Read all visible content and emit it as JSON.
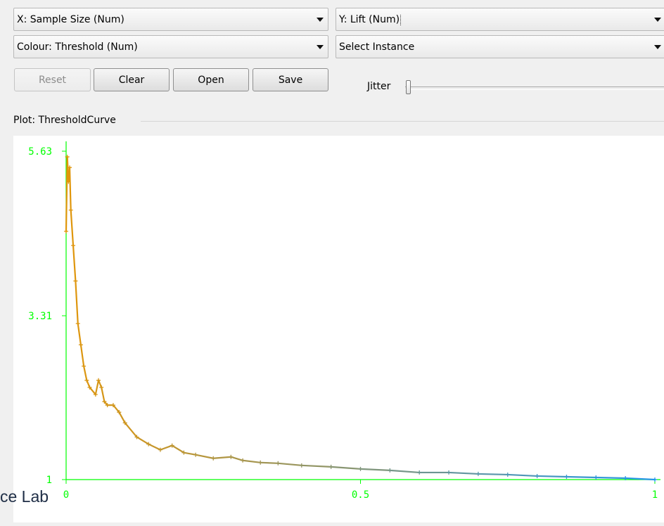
{
  "controls": {
    "x_axis_select": "X: Sample Size (Num)",
    "y_axis_select": "Y: Lift (Num)",
    "colour_select": "Colour: Threshold (Num)",
    "instance_select": "Select Instance",
    "reset_label": "Reset",
    "clear_label": "Clear",
    "open_label": "Open",
    "save_label": "Save",
    "jitter_label": "Jitter",
    "jitter_value": 0
  },
  "plot": {
    "title": "Plot: ThresholdCurve"
  },
  "watermark": "ce Lab",
  "colors": {
    "axis": "#00ff00",
    "series_start": "#e1960a",
    "series_end": "#1e96f0"
  },
  "chart_data": {
    "type": "line",
    "title": "",
    "xlabel": "",
    "ylabel": "",
    "xlim": [
      0,
      1
    ],
    "ylim": [
      1,
      5.63
    ],
    "x_ticks": [
      "0",
      "0.5",
      "1"
    ],
    "y_ticks": [
      "1",
      "3.31",
      "5.63"
    ],
    "grid": false,
    "series": [
      {
        "x": [
          0.0,
          0.002,
          0.004,
          0.006,
          0.008,
          0.012,
          0.016,
          0.02,
          0.025,
          0.03,
          0.035,
          0.04,
          0.05,
          0.055,
          0.06,
          0.065,
          0.07,
          0.08,
          0.09,
          0.1,
          0.12,
          0.14,
          0.16,
          0.18,
          0.2,
          0.22,
          0.25,
          0.28,
          0.3,
          0.33,
          0.36,
          0.4,
          0.45,
          0.5,
          0.55,
          0.6,
          0.65,
          0.7,
          0.75,
          0.8,
          0.85,
          0.9,
          0.95,
          1.0
        ],
        "y": [
          4.5,
          5.55,
          5.2,
          5.4,
          4.8,
          4.3,
          3.8,
          3.2,
          2.9,
          2.6,
          2.4,
          2.3,
          2.2,
          2.4,
          2.3,
          2.1,
          2.05,
          2.05,
          1.95,
          1.8,
          1.6,
          1.5,
          1.42,
          1.48,
          1.38,
          1.35,
          1.3,
          1.32,
          1.27,
          1.24,
          1.23,
          1.2,
          1.18,
          1.15,
          1.13,
          1.1,
          1.1,
          1.08,
          1.07,
          1.05,
          1.04,
          1.03,
          1.02,
          1.0
        ]
      }
    ]
  }
}
